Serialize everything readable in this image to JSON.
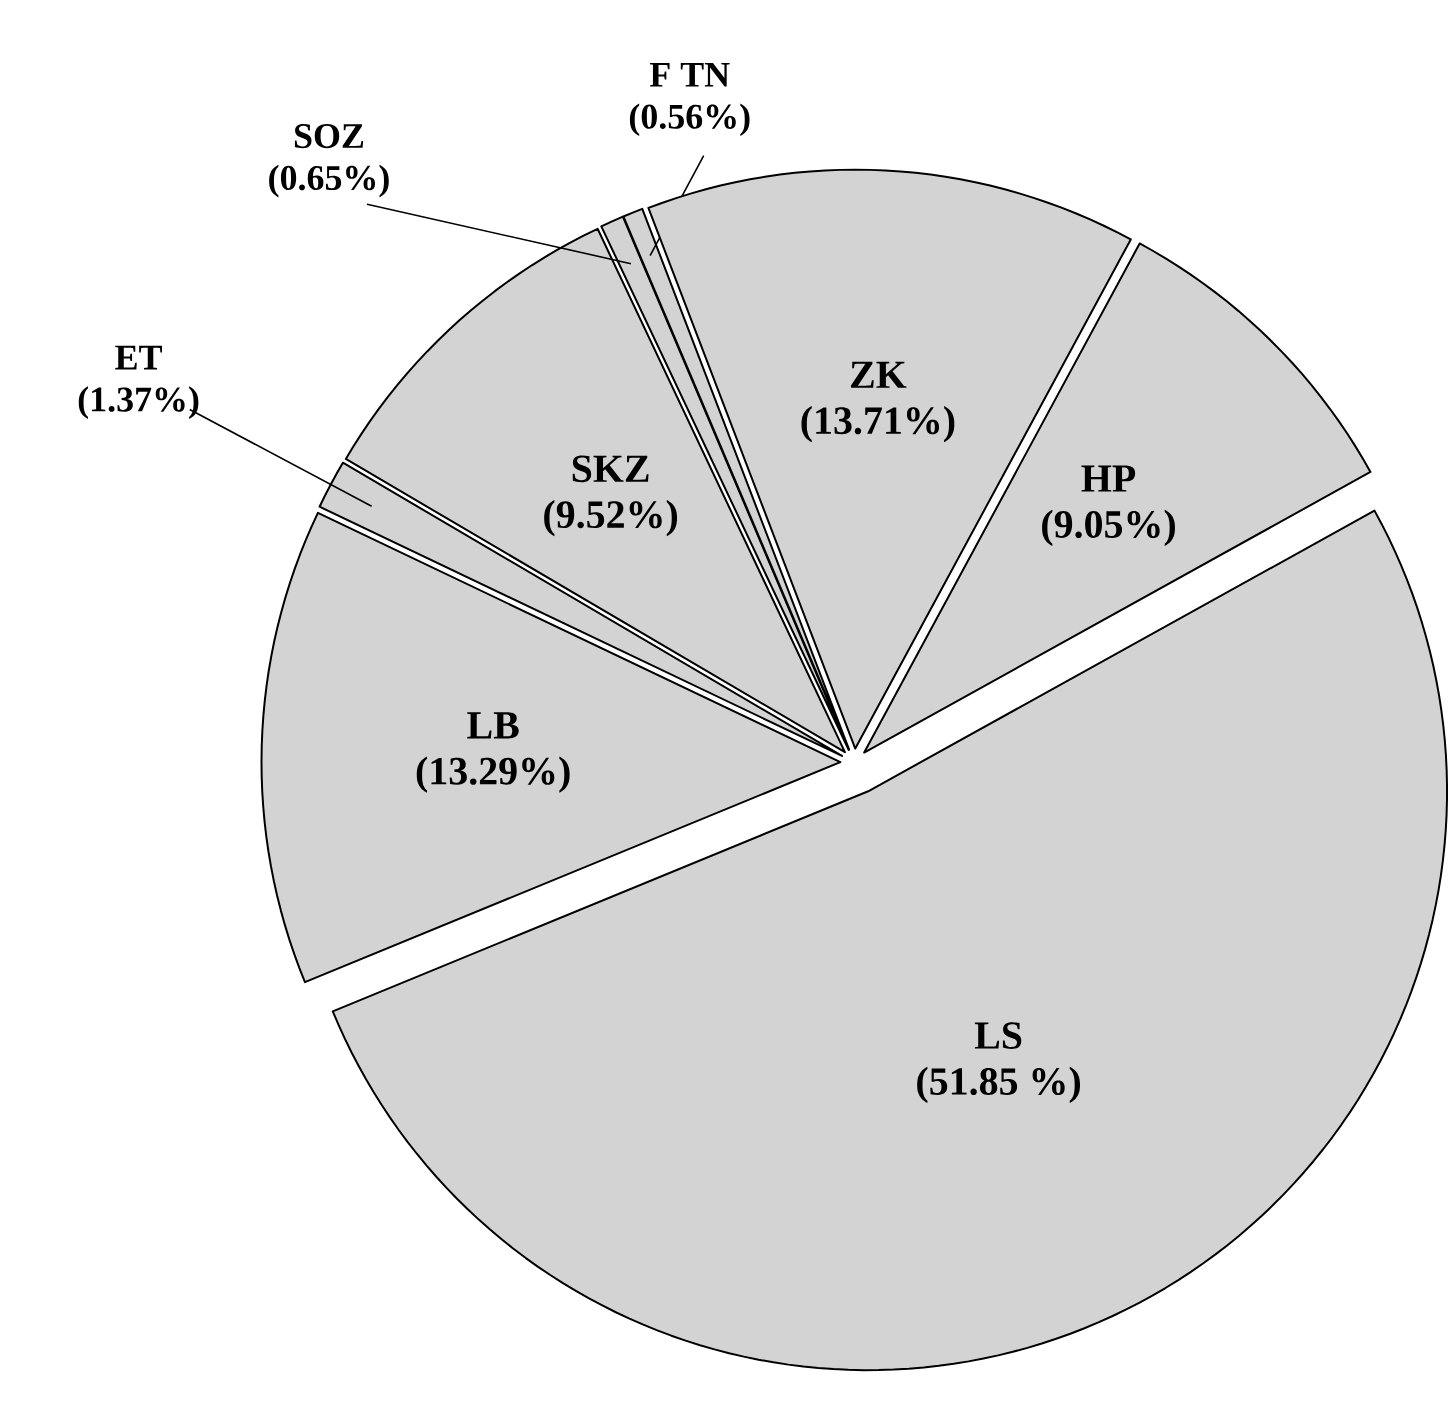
{
  "chart_data": {
    "type": "pie",
    "categories": [
      "LS",
      "LB",
      "ET",
      "SKZ",
      "SOZ",
      "F TN",
      "ZK",
      "HP"
    ],
    "values": [
      51.85,
      13.29,
      1.37,
      9.52,
      0.65,
      0.56,
      13.71,
      9.05
    ],
    "value_labels": [
      "(51.85 %)",
      "(13.29%)",
      "(1.37%)",
      "(9.52%)",
      "(0.65%)",
      "(0.56%)",
      "(13.71%)",
      "(9.05%)"
    ],
    "colors": [
      "#d3d3d3",
      "#d3d3d3",
      "#d3d3d3",
      "#d3d3d3",
      "#d3d3d3",
      "#d3d3d3",
      "#d3d3d3",
      "#d3d3d3"
    ]
  }
}
